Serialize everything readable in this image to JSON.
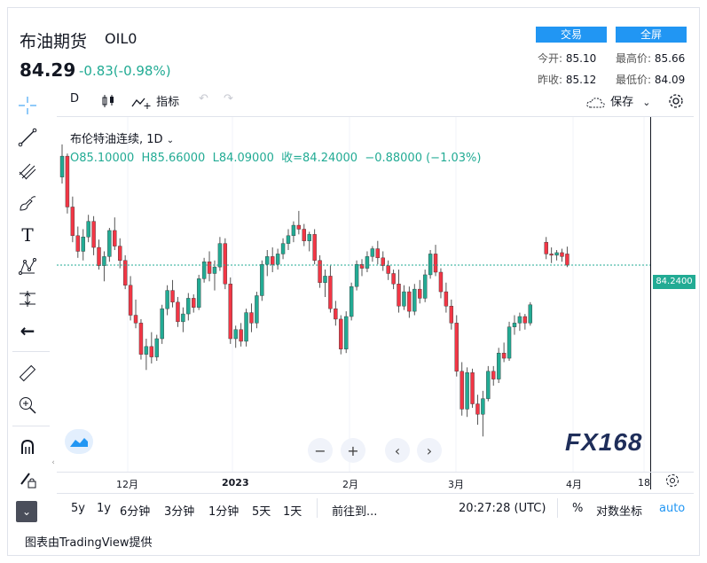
{
  "header": {
    "title": "布油期货",
    "symbol": "OIL0",
    "price": "84.29",
    "change": "-0.83(-0.98%)",
    "trade_button": "交易",
    "fullscreen_button": "全屏",
    "open_label": "今开:",
    "open_value": "85.10",
    "high_label": "最高价:",
    "high_value": "85.66",
    "prevclose_label": "昨收:",
    "prevclose_value": "85.12",
    "low_label": "最低价:",
    "low_value": "84.09"
  },
  "toolbar": {
    "interval": "D",
    "indicators": "指标",
    "save": "保存"
  },
  "legend": {
    "name": "布伦特油连续, 1D",
    "ohlc": "O85.10000  H85.66000  L84.09000  收=84.24000  −0.88000 (−1.03%)"
  },
  "price_tag": "84.2400",
  "x_axis": [
    "12月",
    "2023",
    "2月",
    "3月",
    "4月",
    "18"
  ],
  "bottom_bar": {
    "ranges": [
      "5y",
      "1y",
      "6分钟",
      "3分钟",
      "1分钟",
      "5天",
      "1天"
    ],
    "goto": "前往到...",
    "time": "20:27:28 (UTC)",
    "percent": "%",
    "log": "对数坐标",
    "auto": "auto"
  },
  "footer": "图表由TradingView提供",
  "logo": "FX168",
  "colors": {
    "up": "#22ab94",
    "down": "#f23645",
    "accent": "#2196f3"
  },
  "chart_data": {
    "type": "candlestick",
    "title": "布伦特油连续, 1D",
    "ylim": [
      70,
      90
    ],
    "last": 84.24,
    "candles": [
      [
        91.0,
        93.5,
        90.5,
        92.6
      ],
      [
        92.6,
        92.8,
        88.2,
        88.7
      ],
      [
        88.7,
        89.5,
        86.0,
        86.5
      ],
      [
        86.5,
        87.2,
        84.8,
        85.3
      ],
      [
        85.3,
        87.0,
        84.6,
        86.4
      ],
      [
        86.4,
        88.1,
        86.0,
        87.6
      ],
      [
        87.6,
        88.0,
        85.0,
        85.6
      ],
      [
        85.6,
        86.2,
        83.9,
        84.2
      ],
      [
        84.2,
        85.3,
        83.0,
        84.9
      ],
      [
        84.9,
        87.1,
        84.5,
        86.9
      ],
      [
        86.9,
        87.9,
        85.4,
        85.7
      ],
      [
        85.7,
        86.3,
        84.0,
        84.6
      ],
      [
        84.6,
        85.0,
        82.4,
        82.7
      ],
      [
        82.7,
        83.4,
        80.0,
        80.4
      ],
      [
        80.4,
        81.6,
        79.4,
        79.8
      ],
      [
        79.8,
        80.1,
        77.0,
        77.4
      ],
      [
        77.4,
        78.6,
        76.2,
        78.0
      ],
      [
        78.0,
        79.1,
        76.7,
        77.2
      ],
      [
        77.2,
        78.9,
        76.9,
        78.6
      ],
      [
        78.6,
        81.2,
        78.2,
        80.9
      ],
      [
        80.9,
        82.7,
        80.4,
        82.3
      ],
      [
        82.3,
        83.1,
        81.0,
        81.4
      ],
      [
        81.4,
        81.8,
        79.5,
        79.9
      ],
      [
        79.9,
        81.0,
        79.1,
        80.5
      ],
      [
        80.5,
        82.1,
        80.0,
        81.7
      ],
      [
        81.7,
        82.0,
        80.6,
        81.0
      ],
      [
        81.0,
        83.5,
        80.8,
        83.2
      ],
      [
        83.2,
        84.8,
        82.9,
        84.5
      ],
      [
        84.5,
        85.3,
        83.0,
        83.6
      ],
      [
        83.6,
        84.6,
        82.3,
        84.1
      ],
      [
        84.1,
        86.4,
        83.8,
        85.9
      ],
      [
        85.9,
        86.3,
        82.4,
        82.8
      ],
      [
        82.8,
        83.3,
        78.2,
        78.6
      ],
      [
        78.6,
        79.6,
        77.9,
        79.3
      ],
      [
        79.3,
        79.8,
        78.0,
        78.4
      ],
      [
        78.4,
        80.9,
        78.0,
        80.6
      ],
      [
        80.6,
        81.3,
        79.1,
        79.8
      ],
      [
        79.8,
        82.2,
        79.4,
        81.9
      ],
      [
        81.9,
        84.6,
        81.5,
        84.3
      ],
      [
        84.3,
        85.4,
        83.4,
        84.9
      ],
      [
        84.9,
        85.6,
        83.7,
        84.3
      ],
      [
        84.3,
        85.5,
        83.9,
        85.1
      ],
      [
        85.1,
        86.3,
        84.7,
        85.9
      ],
      [
        85.9,
        87.0,
        85.4,
        86.5
      ],
      [
        86.5,
        87.6,
        86.0,
        87.3
      ],
      [
        87.3,
        88.4,
        86.6,
        87.0
      ],
      [
        87.0,
        87.4,
        85.7,
        86.1
      ],
      [
        86.1,
        86.8,
        85.3,
        86.6
      ],
      [
        86.6,
        87.0,
        84.3,
        84.6
      ],
      [
        84.6,
        85.0,
        82.5,
        82.9
      ],
      [
        82.9,
        83.9,
        81.8,
        83.4
      ],
      [
        83.4,
        84.2,
        80.6,
        80.9
      ],
      [
        80.9,
        81.5,
        79.6,
        80.1
      ],
      [
        80.1,
        80.4,
        77.4,
        77.8
      ],
      [
        77.8,
        80.7,
        77.5,
        80.3
      ],
      [
        80.3,
        82.9,
        80.0,
        82.6
      ],
      [
        82.6,
        84.6,
        82.3,
        84.3
      ],
      [
        84.3,
        84.7,
        83.4,
        84.0
      ],
      [
        84.0,
        85.3,
        83.7,
        84.9
      ],
      [
        84.9,
        85.7,
        84.5,
        85.5
      ],
      [
        85.5,
        86.1,
        84.3,
        84.8
      ],
      [
        84.8,
        85.3,
        83.8,
        84.2
      ],
      [
        84.2,
        84.6,
        83.1,
        83.6
      ],
      [
        83.6,
        83.9,
        82.4,
        82.8
      ],
      [
        82.8,
        83.9,
        80.6,
        81.1
      ],
      [
        81.1,
        82.7,
        80.8,
        82.2
      ],
      [
        82.2,
        82.6,
        80.2,
        80.7
      ],
      [
        80.7,
        82.8,
        80.4,
        82.4
      ],
      [
        82.4,
        83.1,
        81.3,
        81.7
      ],
      [
        81.7,
        83.9,
        81.4,
        83.5
      ],
      [
        83.5,
        85.4,
        83.2,
        85.1
      ],
      [
        85.1,
        85.8,
        83.4,
        83.7
      ],
      [
        83.7,
        84.0,
        81.7,
        82.2
      ],
      [
        82.2,
        82.9,
        80.6,
        81.1
      ],
      [
        81.1,
        81.6,
        79.3,
        79.8
      ],
      [
        79.8,
        80.4,
        75.7,
        76.1
      ],
      [
        76.1,
        76.8,
        72.7,
        73.2
      ],
      [
        73.2,
        76.4,
        72.6,
        76.0
      ],
      [
        76.0,
        76.3,
        73.3,
        73.6
      ],
      [
        73.6,
        74.3,
        72.0,
        72.8
      ],
      [
        72.8,
        74.6,
        71.1,
        74.0
      ],
      [
        74.0,
        76.5,
        73.8,
        76.1
      ],
      [
        76.1,
        76.5,
        75.0,
        75.5
      ],
      [
        75.5,
        77.9,
        75.2,
        77.5
      ],
      [
        77.5,
        78.3,
        76.8,
        77.1
      ],
      [
        77.1,
        79.9,
        76.9,
        79.5
      ],
      [
        79.5,
        80.4,
        78.9,
        79.8
      ],
      [
        79.8,
        80.6,
        79.2,
        80.3
      ],
      [
        80.3,
        80.5,
        79.3,
        79.8
      ],
      [
        79.8,
        81.4,
        79.6,
        81.2
      ],
      [
        86.0,
        86.4,
        84.7,
        85.1
      ],
      [
        85.1,
        85.6,
        84.4,
        85.0
      ],
      [
        85.0,
        85.4,
        84.6,
        85.2
      ],
      [
        85.2,
        85.5,
        84.5,
        84.9
      ],
      [
        85.1,
        85.66,
        84.09,
        84.24
      ]
    ]
  }
}
